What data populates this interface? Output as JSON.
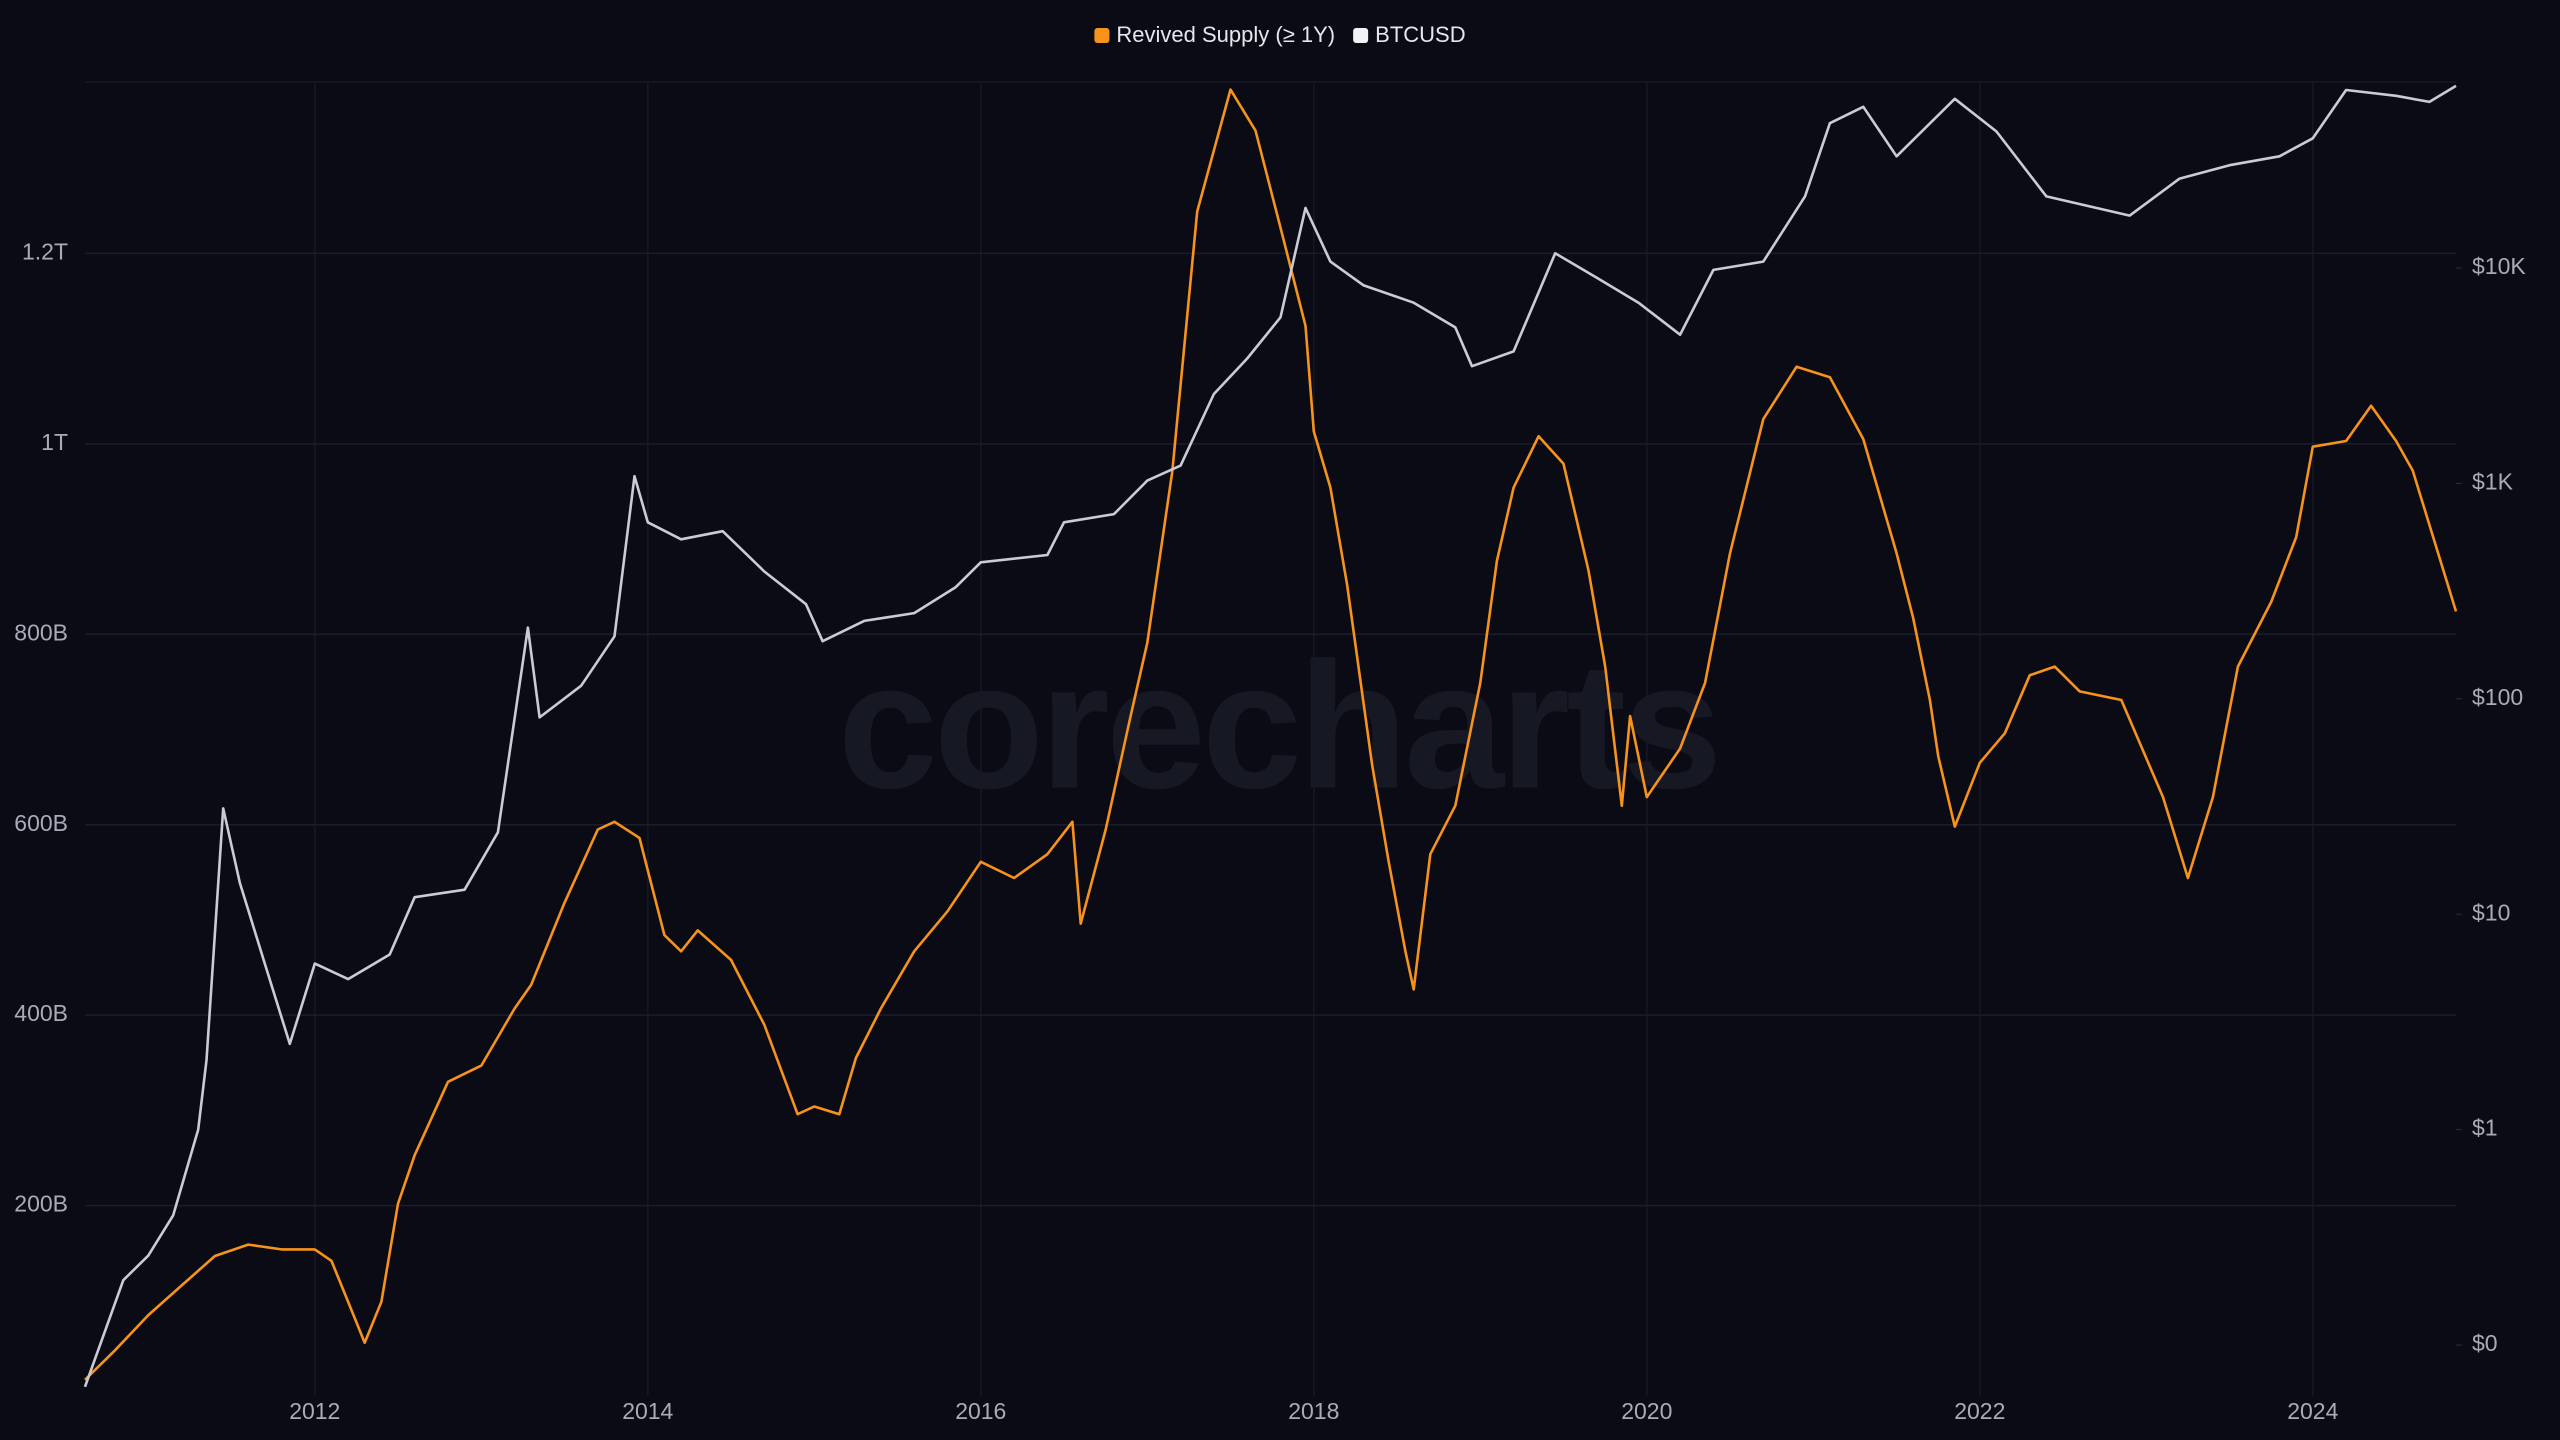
{
  "chart_data": {
    "type": "line",
    "watermark": "corecharts",
    "y2_log": true,
    "grid": true,
    "legend": "top",
    "xlim": [
      2010.62,
      2024.86
    ],
    "xticks": [
      2012,
      2014,
      2016,
      2018,
      2020,
      2022,
      2024
    ],
    "ylim": [
      0,
      1380
    ],
    "yticks": [
      {
        "value": 200,
        "label": "200B"
      },
      {
        "value": 400,
        "label": "400B"
      },
      {
        "value": 600,
        "label": "600B"
      },
      {
        "value": 800,
        "label": "800B"
      },
      {
        "value": 1000,
        "label": "1T"
      },
      {
        "value": 1200,
        "label": "1.2T"
      }
    ],
    "y2lim": [
      0.058,
      73000
    ],
    "y2ticks": [
      {
        "value": 0.1,
        "label": "$0"
      },
      {
        "value": 1,
        "label": "$1"
      },
      {
        "value": 10,
        "label": "$10"
      },
      {
        "value": 100,
        "label": "$100"
      },
      {
        "value": 1000,
        "label": "$1K"
      },
      {
        "value": 10000,
        "label": "$10K"
      }
    ],
    "series": [
      {
        "name": "Revived Supply (≥ 1Y)",
        "color": "#f7931a",
        "x": [
          2010.62,
          2010.8,
          2011.0,
          2011.2,
          2011.4,
          2011.6,
          2011.8,
          2012.0,
          2012.1,
          2012.2,
          2012.3,
          2012.4,
          2012.5,
          2012.6,
          2012.8,
          2013.0,
          2013.2,
          2013.3,
          2013.5,
          2013.7,
          2013.8,
          2013.95,
          2014.1,
          2014.2,
          2014.3,
          2014.5,
          2014.7,
          2014.9,
          2015.0,
          2015.15,
          2015.25,
          2015.4,
          2015.6,
          2015.8,
          2016.0,
          2016.2,
          2016.4,
          2016.55,
          2016.6,
          2016.75,
          2016.9,
          2017.0,
          2017.15,
          2017.3,
          2017.5,
          2017.65,
          2017.8,
          2017.95,
          2018.0,
          2018.1,
          2018.2,
          2018.35,
          2018.45,
          2018.55,
          2018.6,
          2018.7,
          2018.85,
          2019.0,
          2019.1,
          2019.2,
          2019.35,
          2019.5,
          2019.65,
          2019.75,
          2019.85,
          2019.9,
          2020.0,
          2020.2,
          2020.35,
          2020.5,
          2020.7,
          2020.9,
          2021.1,
          2021.3,
          2021.5,
          2021.6,
          2021.7,
          2021.75,
          2021.85,
          2022.0,
          2022.15,
          2022.3,
          2022.45,
          2022.6,
          2022.85,
          2023.1,
          2023.25,
          2023.4,
          2023.55,
          2023.75,
          2023.9,
          2024.0,
          2024.2,
          2024.35,
          2024.5,
          2024.6,
          2024.86
        ],
        "values": [
          17,
          48,
          85,
          116,
          147,
          159,
          154,
          154,
          142,
          99,
          56,
          99,
          202,
          253,
          330,
          347,
          407,
          432,
          518,
          595,
          603,
          586,
          484,
          467,
          489,
          458,
          390,
          296,
          304,
          296,
          355,
          407,
          467,
          509,
          561,
          544,
          569,
          603,
          496,
          595,
          714,
          791,
          971,
          1244,
          1372,
          1329,
          1227,
          1124,
          1013,
          954,
          852,
          663,
          561,
          467,
          427,
          569,
          620,
          749,
          877,
          954,
          1008,
          979,
          867,
          766,
          620,
          714,
          629,
          680,
          749,
          885,
          1026,
          1081,
          1070,
          1005,
          885,
          817,
          731,
          672,
          598,
          665,
          696,
          757,
          766,
          740,
          731,
          629,
          544,
          629,
          766,
          834,
          902,
          997,
          1003,
          1040,
          1003,
          972,
          824
        ]
      },
      {
        "name": "BTCUSD",
        "color": "#c9ccd6",
        "axis": "y2",
        "x": [
          2010.62,
          2010.85,
          2011.0,
          2011.15,
          2011.3,
          2011.35,
          2011.45,
          2011.55,
          2011.7,
          2011.85,
          2012.0,
          2012.2,
          2012.45,
          2012.6,
          2012.9,
          2013.1,
          2013.28,
          2013.35,
          2013.6,
          2013.8,
          2013.92,
          2014.0,
          2014.2,
          2014.45,
          2014.7,
          2014.95,
          2015.05,
          2015.3,
          2015.6,
          2015.85,
          2016.0,
          2016.4,
          2016.5,
          2016.8,
          2017.0,
          2017.2,
          2017.4,
          2017.6,
          2017.8,
          2017.95,
          2018.1,
          2018.3,
          2018.6,
          2018.85,
          2018.95,
          2019.2,
          2019.45,
          2019.7,
          2019.95,
          2020.2,
          2020.4,
          2020.7,
          2020.95,
          2021.1,
          2021.3,
          2021.5,
          2021.85,
          2022.1,
          2022.4,
          2022.9,
          2023.2,
          2023.5,
          2023.8,
          2024.0,
          2024.2,
          2024.5,
          2024.7,
          2024.86
        ],
        "values": [
          0.064,
          0.2,
          0.26,
          0.4,
          1.0,
          2.1,
          31,
          14,
          5.9,
          2.5,
          5.9,
          5.0,
          6.5,
          12,
          13,
          24,
          214,
          82,
          115,
          195,
          1080,
          660,
          550,
          600,
          390,
          275,
          185,
          230,
          250,
          330,
          430,
          465,
          660,
          720,
          1030,
          1210,
          2600,
          3800,
          5900,
          19000,
          10700,
          8300,
          6900,
          5300,
          3500,
          4100,
          11700,
          9000,
          6900,
          4900,
          9800,
          10700,
          21500,
          47000,
          56000,
          33000,
          61000,
          43000,
          21500,
          17500,
          26000,
          30000,
          33000,
          40000,
          67000,
          63000,
          59000,
          70000
        ]
      }
    ]
  }
}
